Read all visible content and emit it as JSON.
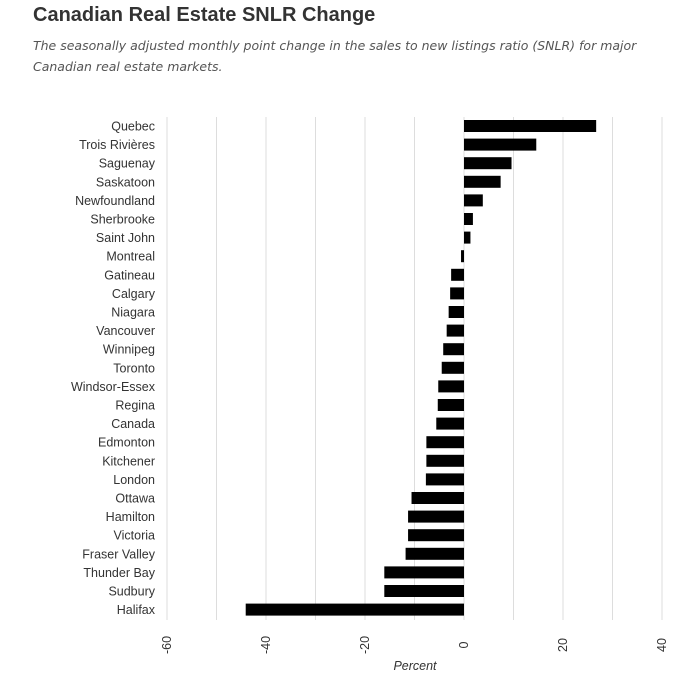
{
  "header": {
    "title": "Canadian Real Estate SNLR Change",
    "subtitle": "The seasonally adjusted monthly point change in the sales to new listings ratio (SNLR) for major Canadian real estate markets."
  },
  "chart_data": {
    "type": "bar",
    "orientation": "horizontal",
    "title": "Canadian Real Estate SNLR Change",
    "subtitle": "The seasonally adjusted monthly point change in the sales to new listings ratio (SNLR) for major Canadian real estate markets.",
    "xlabel": "Percent",
    "ylabel": "",
    "xlim": [
      -60,
      40
    ],
    "xticks": [
      -60,
      -40,
      -20,
      0,
      20,
      40
    ],
    "xtick_labels": [
      "-60",
      "-40",
      "-20",
      "0",
      "20",
      "40"
    ],
    "grid": true,
    "bar_color": "#000000",
    "grid_color": "#dddddd",
    "categories": [
      "Quebec",
      "Trois Rivières",
      "Saguenay",
      "Saskatoon",
      "Newfoundland",
      "Sherbrooke",
      "Saint John",
      "Montreal",
      "Gatineau",
      "Calgary",
      "Niagara",
      "Vancouver",
      "Winnipeg",
      "Toronto",
      "Windsor-Essex",
      "Regina",
      "Canada",
      "Edmonton",
      "Kitchener",
      "London",
      "Ottawa",
      "Hamilton",
      "Victoria",
      "Fraser Valley",
      "Thunder Bay",
      "Sudbury",
      "Halifax"
    ],
    "values": [
      26.7,
      14.6,
      9.6,
      7.4,
      3.8,
      1.8,
      1.3,
      -0.6,
      -2.6,
      -2.8,
      -3.1,
      -3.5,
      -4.2,
      -4.5,
      -5.2,
      -5.3,
      -5.6,
      -7.6,
      -7.6,
      -7.7,
      -10.6,
      -11.3,
      -11.3,
      -11.8,
      -16.1,
      -16.1,
      -44.1
    ]
  }
}
